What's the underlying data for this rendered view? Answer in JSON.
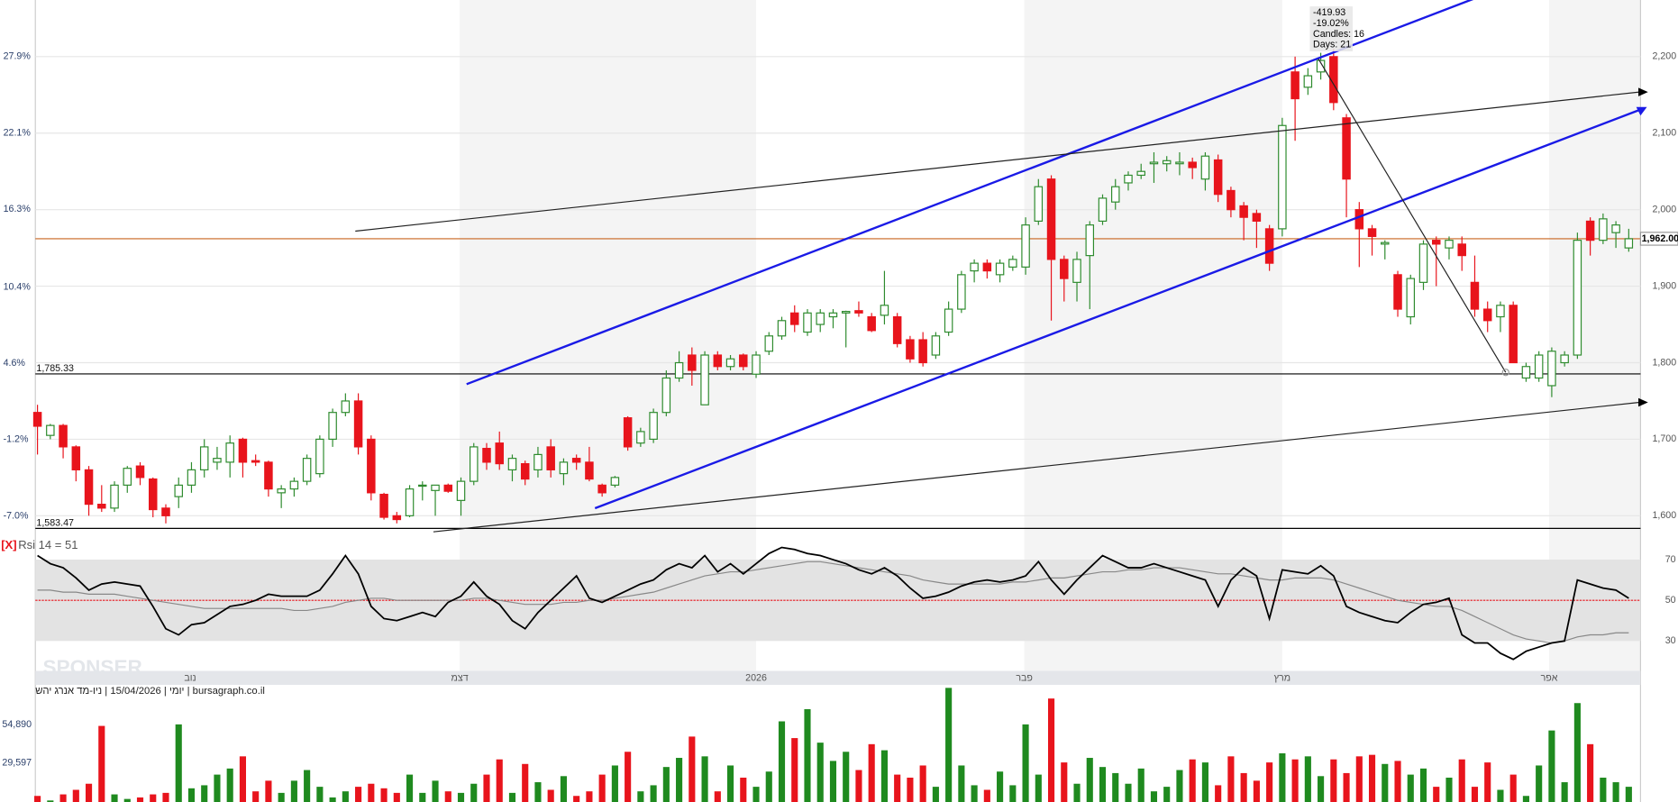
{
  "chart_data": {
    "type": "candlestick",
    "colors": {
      "up": "#2e8b2e",
      "down": "#e8141c",
      "level": "#000000",
      "last": "#c8641e"
    },
    "ylim": [
      1579,
      2274
    ],
    "yticks": [
      {
        "value": 2200,
        "label": "2,200"
      },
      {
        "value": 2100,
        "label": "2,100"
      },
      {
        "value": 2000,
        "label": "2,000"
      },
      {
        "value": 1900,
        "label": "1,900"
      },
      {
        "value": 1800,
        "label": "1,800"
      },
      {
        "value": 1700,
        "label": "1,700"
      },
      {
        "value": 1600,
        "label": "1,600"
      }
    ],
    "y2lim": [
      -8.2,
      32.2
    ],
    "y2ticks": [
      {
        "value": 27.9,
        "label": "27.9%"
      },
      {
        "value": 22.1,
        "label": "22.1%"
      },
      {
        "value": 16.3,
        "label": "16.3%"
      },
      {
        "value": 10.4,
        "label": "10.4%"
      },
      {
        "value": 4.6,
        "label": "4.6%"
      },
      {
        "value": -1.2,
        "label": "-1.2%"
      },
      {
        "value": -7.0,
        "label": "-7.0%"
      }
    ],
    "xticks": [
      {
        "value": 11.9,
        "label": "נוב"
      },
      {
        "value": 32.9,
        "label": "דצמ"
      },
      {
        "value": 56.0,
        "label": "2026"
      },
      {
        "value": 76.9,
        "label": "פבר"
      },
      {
        "value": 97.0,
        "label": "מרץ"
      },
      {
        "value": 117.8,
        "label": "אפר"
      }
    ],
    "levels": [
      {
        "value": 1785.33,
        "label": "1,785.33"
      },
      {
        "value": 1583.47,
        "label": "1,583.47"
      }
    ],
    "last": {
      "value": 1962,
      "label": "1,962.00"
    },
    "annotation": [
      "-419.93",
      "-19.02%",
      "Candles: 16",
      "Days: 21"
    ],
    "footer": "יומי | 15/04/2026 | ניו-מד אנרג יהש | bursagraph.co.il",
    "watermark": "SPONSER",
    "open": [
      1735,
      1705,
      1718,
      1690,
      1660,
      1615,
      1610,
      1640,
      1665,
      1648,
      1610,
      1625,
      1640,
      1660,
      1670,
      1670,
      1700,
      1672,
      1670,
      1630,
      1635,
      1645,
      1655,
      1700,
      1735,
      1750,
      1700,
      1628,
      1600,
      1600,
      1640,
      1633,
      1640,
      1620,
      1645,
      1688,
      1695,
      1660,
      1668,
      1660,
      1690,
      1655,
      1675,
      1670,
      1640,
      1640,
      1728,
      1695,
      1700,
      1735,
      1780,
      1810,
      1745,
      1810,
      1795,
      1810,
      1785,
      1815,
      1835,
      1865,
      1840,
      1850,
      1860,
      1865,
      1868,
      1860,
      1862,
      1860,
      1830,
      1830,
      1810,
      1840,
      1870,
      1920,
      1930,
      1915,
      1925,
      1925,
      1985,
      2040,
      1935,
      1905,
      1940,
      1985,
      2010,
      2035,
      2045,
      2060,
      2060,
      2060,
      2062,
      2040,
      2065,
      2025,
      2005,
      1995,
      1975,
      1975,
      2180,
      2160,
      2180,
      2200,
      2120,
      2000,
      1975,
      1955,
      1915,
      1860,
      1905,
      1960,
      1950,
      1955,
      1905,
      1870,
      1860,
      1875,
      1780,
      1780,
      1770,
      1800,
      1810,
      1985,
      1960,
      1970,
      1950
    ],
    "high": [
      1745,
      1720,
      1720,
      1692,
      1665,
      1640,
      1645,
      1665,
      1670,
      1650,
      1615,
      1650,
      1670,
      1700,
      1690,
      1705,
      1702,
      1680,
      1672,
      1640,
      1650,
      1680,
      1705,
      1740,
      1760,
      1760,
      1705,
      1630,
      1605,
      1640,
      1645,
      1640,
      1642,
      1650,
      1695,
      1695,
      1710,
      1680,
      1672,
      1690,
      1700,
      1675,
      1680,
      1690,
      1642,
      1652,
      1730,
      1715,
      1740,
      1790,
      1815,
      1820,
      1815,
      1815,
      1810,
      1812,
      1815,
      1840,
      1860,
      1875,
      1870,
      1870,
      1870,
      1868,
      1880,
      1865,
      1920,
      1865,
      1835,
      1840,
      1840,
      1880,
      1920,
      1935,
      1935,
      1935,
      1940,
      1990,
      2040,
      2045,
      1940,
      1945,
      1985,
      2020,
      2040,
      2050,
      2060,
      2075,
      2070,
      2075,
      2068,
      2075,
      2072,
      2030,
      2010,
      2000,
      1980,
      2120,
      2200,
      2185,
      2205,
      2210,
      2125,
      2010,
      1980,
      1960,
      1920,
      1915,
      1960,
      1965,
      1965,
      1965,
      1940,
      1880,
      1880,
      1880,
      1800,
      1815,
      1820,
      1815,
      1970,
      1990,
      1995,
      1985,
      1975
    ],
    "low": [
      1680,
      1700,
      1675,
      1645,
      1600,
      1605,
      1605,
      1630,
      1640,
      1598,
      1590,
      1610,
      1630,
      1650,
      1660,
      1650,
      1650,
      1665,
      1625,
      1610,
      1625,
      1640,
      1650,
      1690,
      1730,
      1680,
      1620,
      1595,
      1590,
      1598,
      1620,
      1600,
      1630,
      1600,
      1640,
      1660,
      1660,
      1645,
      1640,
      1650,
      1650,
      1640,
      1660,
      1645,
      1625,
      1637,
      1685,
      1690,
      1695,
      1730,
      1775,
      1770,
      1745,
      1790,
      1790,
      1790,
      1780,
      1810,
      1830,
      1840,
      1835,
      1840,
      1845,
      1820,
      1860,
      1840,
      1850,
      1820,
      1800,
      1795,
      1805,
      1835,
      1865,
      1905,
      1910,
      1905,
      1920,
      1915,
      1980,
      1855,
      1880,
      1880,
      1870,
      1980,
      2000,
      2025,
      2040,
      2035,
      2050,
      2045,
      2040,
      2025,
      2010,
      1990,
      1960,
      1950,
      1920,
      1965,
      2090,
      2150,
      2170,
      2130,
      1990,
      1925,
      1940,
      1935,
      1860,
      1850,
      1895,
      1900,
      1935,
      1920,
      1860,
      1840,
      1840,
      1800,
      1775,
      1775,
      1755,
      1795,
      1805,
      1940,
      1955,
      1950,
      1945
    ],
    "close": [
      1717,
      1718,
      1690,
      1660,
      1615,
      1610,
      1640,
      1662,
      1650,
      1608,
      1600,
      1640,
      1660,
      1690,
      1675,
      1695,
      1670,
      1670,
      1635,
      1635,
      1645,
      1675,
      1700,
      1735,
      1750,
      1690,
      1630,
      1598,
      1595,
      1635,
      1640,
      1640,
      1632,
      1645,
      1690,
      1670,
      1668,
      1675,
      1648,
      1680,
      1660,
      1670,
      1670,
      1648,
      1630,
      1650,
      1690,
      1710,
      1735,
      1780,
      1800,
      1790,
      1810,
      1795,
      1805,
      1795,
      1810,
      1835,
      1855,
      1850,
      1865,
      1865,
      1865,
      1867,
      1865,
      1842,
      1875,
      1825,
      1805,
      1800,
      1835,
      1870,
      1915,
      1930,
      1920,
      1930,
      1935,
      1980,
      2030,
      1935,
      1910,
      1935,
      1980,
      2015,
      2030,
      2045,
      2050,
      2062,
      2064,
      2062,
      2055,
      2070,
      2020,
      2000,
      1990,
      1985,
      1930,
      2110,
      2145,
      2175,
      2195,
      2140,
      2040,
      1975,
      1965,
      1957,
      1870,
      1910,
      1955,
      1955,
      1960,
      1940,
      1870,
      1855,
      1875,
      1800,
      1795,
      1810,
      1815,
      1810,
      1960,
      1960,
      1988,
      1980,
      1962
    ],
    "volume": {
      "ylim": [
        4000,
        81000
      ],
      "yticks": [
        {
          "value": 54890,
          "label": "54,890"
        },
        {
          "value": 29597,
          "label": "29,597"
        }
      ],
      "values": [
        8000,
        5000,
        9000,
        12000,
        16000,
        54000,
        9000,
        6000,
        7000,
        9000,
        10000,
        55000,
        13000,
        15000,
        22000,
        26000,
        34000,
        11000,
        18000,
        10000,
        18000,
        25000,
        14000,
        7000,
        11000,
        14000,
        16000,
        13000,
        10000,
        22000,
        10000,
        18000,
        11000,
        10000,
        16000,
        22000,
        32000,
        10000,
        29000,
        17000,
        12000,
        21000,
        8000,
        11000,
        22000,
        28000,
        37000,
        11000,
        15000,
        27000,
        33000,
        47000,
        34000,
        11000,
        28000,
        20000,
        14000,
        24000,
        57000,
        46000,
        65000,
        43000,
        31000,
        37000,
        25000,
        42000,
        38000,
        22000,
        20000,
        28000,
        14000,
        79000,
        28000,
        15000,
        12000,
        24000,
        15000,
        55000,
        22000,
        72000,
        30000,
        16000,
        33000,
        27000,
        23000,
        16000,
        26000,
        11000,
        14000,
        25000,
        32000,
        30000,
        15000,
        34000,
        23000,
        18000,
        30000,
        36000,
        32000,
        34000,
        21000,
        32000,
        23000,
        34000,
        35000,
        29000,
        31000,
        22000,
        26000,
        14000,
        20000,
        32000,
        14000,
        30000,
        12000,
        22000,
        8000,
        28000,
        51000,
        17000,
        69000,
        42000,
        20000,
        17000,
        14000
      ]
    },
    "rsi": {
      "label": "Rsi 14 = 51",
      "close_label": "[X]",
      "ylim": [
        15.3,
        80.5
      ],
      "yticks": [
        70,
        50,
        30
      ],
      "band": [
        30,
        70
      ],
      "midline": 50,
      "series": [
        {
          "color": "#000000",
          "values": [
            72,
            68,
            66,
            61,
            55,
            58,
            59,
            58,
            57,
            47,
            36,
            33,
            38,
            39,
            43,
            47,
            48,
            50,
            53,
            52,
            52,
            52,
            55,
            63,
            72,
            63,
            47,
            41,
            40,
            42,
            44,
            42,
            49,
            52,
            59,
            52,
            48,
            40,
            36,
            44,
            50,
            56,
            62,
            51,
            49,
            52,
            55,
            58,
            60,
            65,
            68,
            66,
            72,
            64,
            68,
            63,
            68,
            73,
            76,
            75,
            73,
            72,
            70,
            68,
            65,
            63,
            66,
            62,
            56,
            51,
            52,
            54,
            57,
            59,
            60,
            59,
            60,
            62,
            69,
            60,
            53,
            60,
            66,
            72,
            69,
            66,
            66,
            68,
            66,
            64,
            62,
            60,
            47,
            60,
            66,
            62,
            41,
            65,
            64,
            63,
            67,
            62,
            47,
            44,
            42,
            40,
            39,
            44,
            48,
            49,
            51,
            33,
            29,
            29,
            24,
            21,
            25,
            27,
            29,
            30,
            60,
            58,
            56,
            55,
            51
          ]
        },
        {
          "color": "#888888",
          "values": [
            55,
            55,
            54,
            54,
            53,
            53,
            53,
            52,
            51,
            50,
            49,
            48,
            47,
            46,
            46,
            46,
            46,
            46,
            46,
            46,
            45,
            45,
            46,
            47,
            49,
            50,
            51,
            51,
            50,
            50,
            50,
            50,
            50,
            50,
            51,
            51,
            50,
            49,
            48,
            48,
            48,
            49,
            49,
            50,
            50,
            51,
            52,
            53,
            54,
            56,
            58,
            60,
            62,
            63,
            64,
            64,
            65,
            66,
            67,
            68,
            69,
            69,
            68,
            67,
            66,
            65,
            64,
            63,
            62,
            60,
            59,
            58,
            58,
            58,
            58,
            58,
            59,
            59,
            60,
            61,
            61,
            62,
            63,
            64,
            64,
            65,
            65,
            66,
            66,
            66,
            65,
            64,
            63,
            63,
            62,
            61,
            60,
            60,
            61,
            61,
            61,
            60,
            58,
            56,
            54,
            52,
            50,
            49,
            48,
            47,
            47,
            45,
            42,
            39,
            36,
            33,
            31,
            30,
            29,
            30,
            32,
            33,
            33,
            34,
            34
          ]
        }
      ]
    }
  }
}
